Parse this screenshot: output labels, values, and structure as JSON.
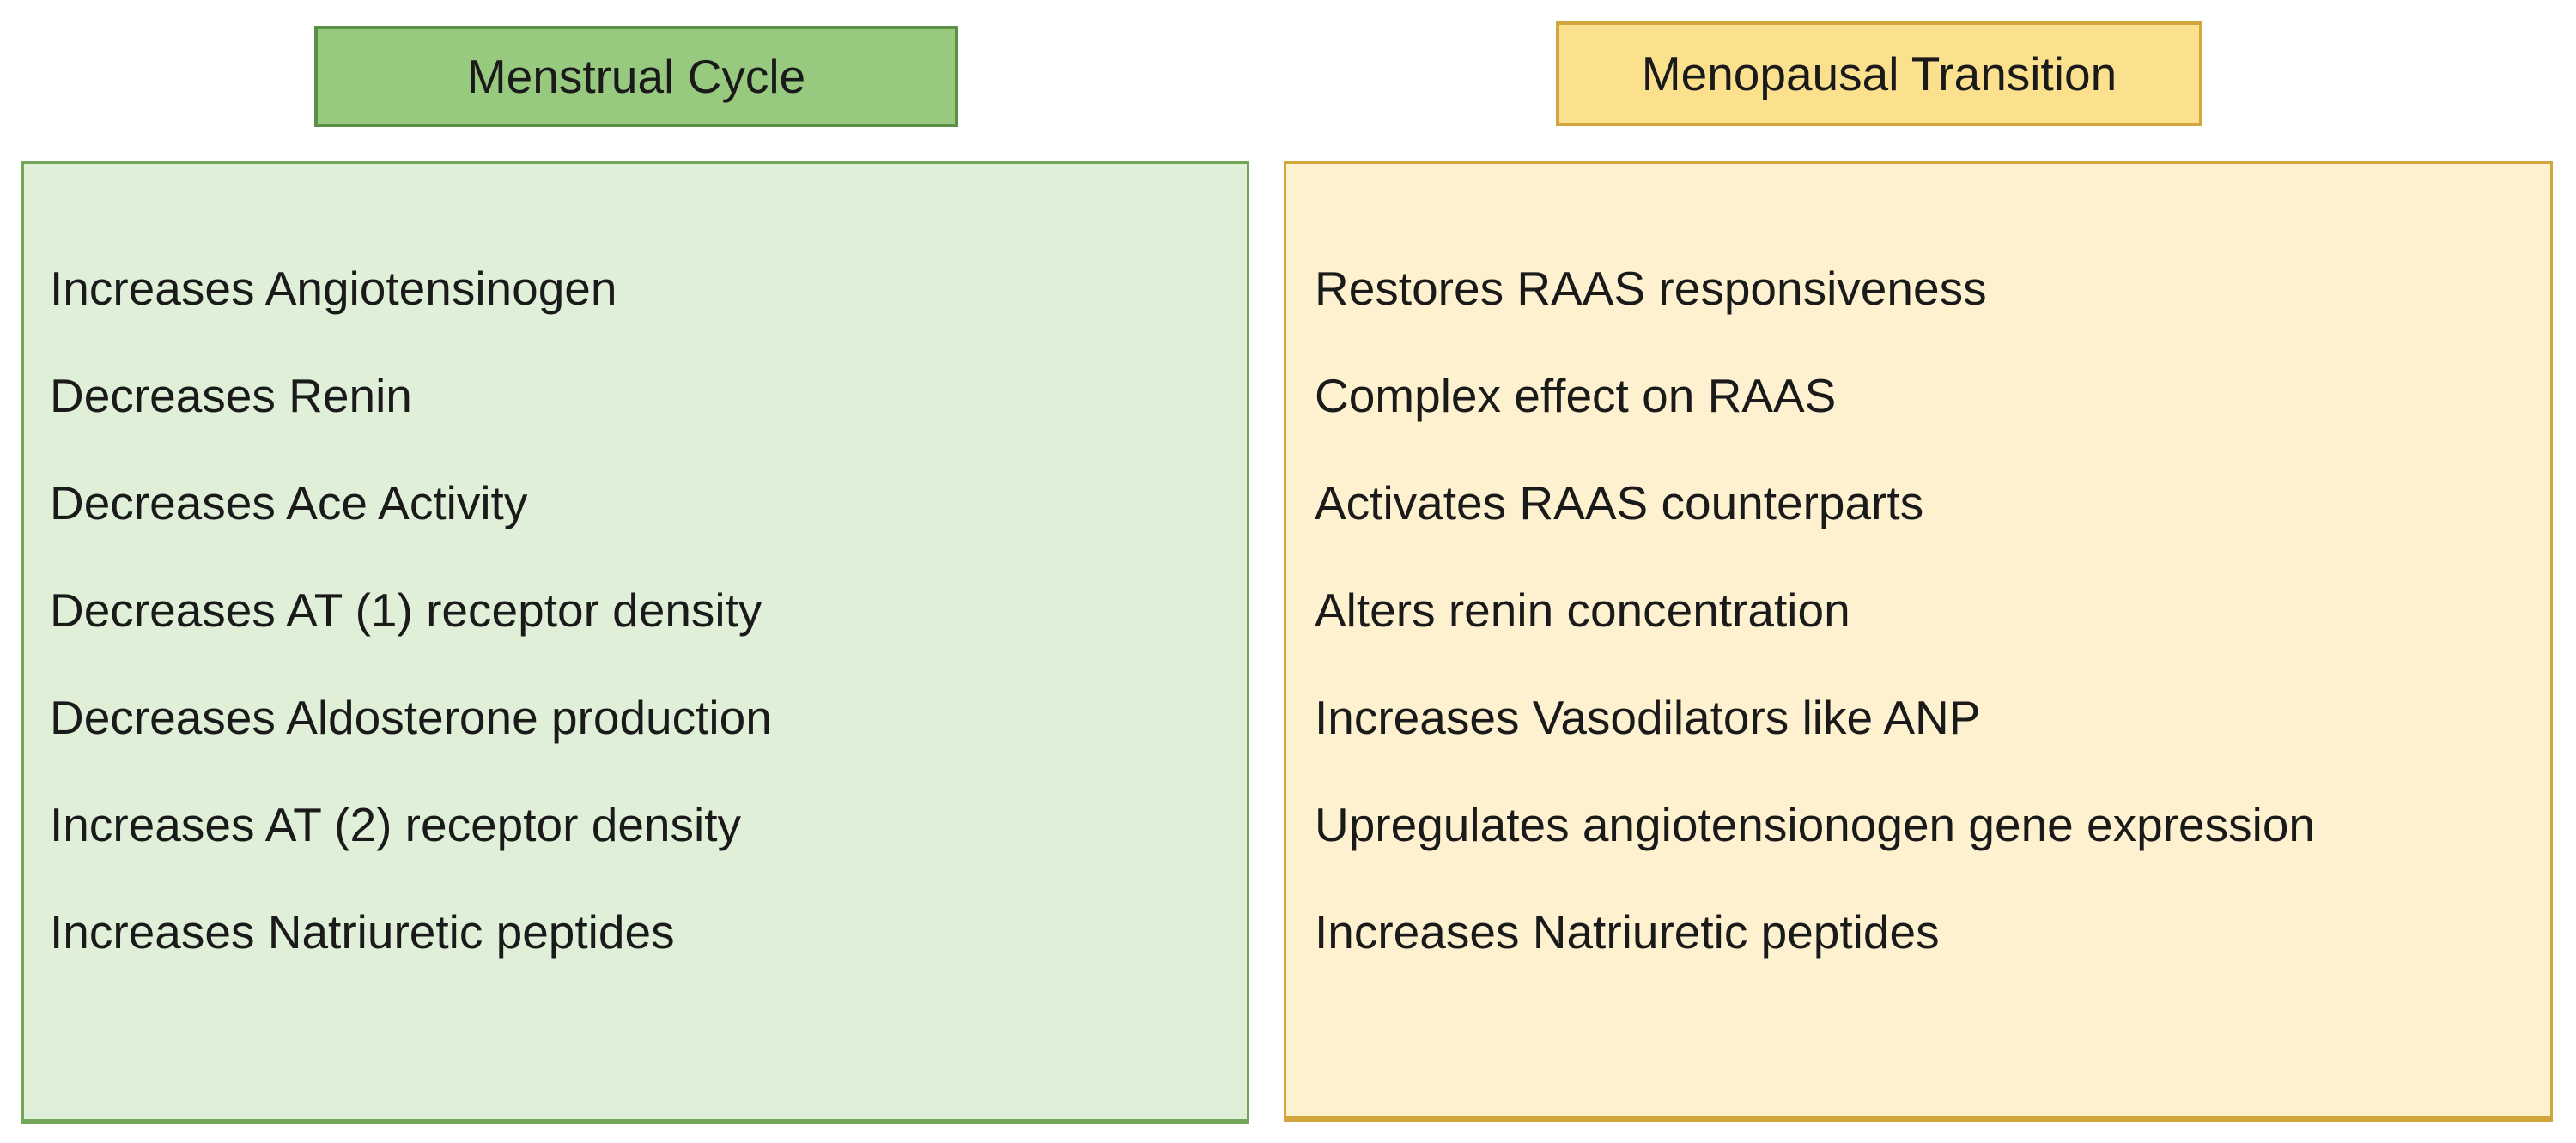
{
  "colors": {
    "background": "#ffffff",
    "text": "#1a1a1a",
    "left_header_fill": "#97ca7f",
    "left_header_border": "#5c8f47",
    "left_body_fill": "#e0efd8",
    "left_body_border": "#73a55b",
    "right_header_fill": "#fbe18e",
    "right_header_border": "#d3a63d",
    "right_body_fill": "#fdf1cf",
    "right_body_border": "#d3a63d"
  },
  "left_panel": {
    "title": "Menstrual Cycle",
    "items": [
      "Increases Angiotensinogen",
      "Decreases Renin",
      "Decreases Ace Activity",
      "Decreases AT (1) receptor density",
      "Decreases Aldosterone production",
      "Increases AT (2) receptor density",
      "Increases Natriuretic peptides"
    ]
  },
  "right_panel": {
    "title": "Menopausal Transition",
    "items": [
      "Restores RAAS responsiveness",
      "Complex effect on RAAS",
      "Activates RAAS counterparts",
      "Alters renin concentration",
      "Increases Vasodilators like ANP",
      "Upregulates angiotensionogen gene expression",
      "Increases Natriuretic peptides"
    ]
  }
}
